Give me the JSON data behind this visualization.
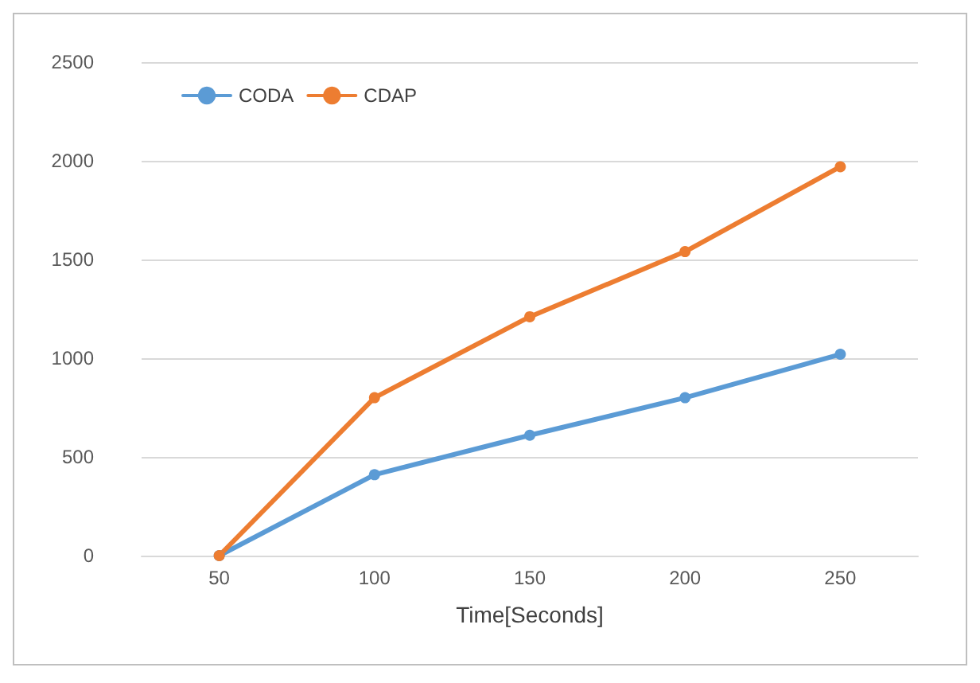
{
  "chart_data": {
    "type": "line",
    "xlabel": "Time[Seconds]",
    "categories": [
      "50",
      "100",
      "150",
      "200",
      "250"
    ],
    "series": [
      {
        "name": "CODA",
        "color": "#5b9bd5",
        "values": [
          0,
          410,
          610,
          800,
          1020
        ]
      },
      {
        "name": "CDAP",
        "color": "#ed7d31",
        "values": [
          0,
          800,
          1210,
          1540,
          1970
        ]
      }
    ],
    "ylim": [
      0,
      2500
    ],
    "yticks": [
      0,
      500,
      1000,
      1500,
      2000,
      2500
    ],
    "grid": "y",
    "legend": "top left",
    "marker": "circle",
    "line_style": "solid"
  }
}
